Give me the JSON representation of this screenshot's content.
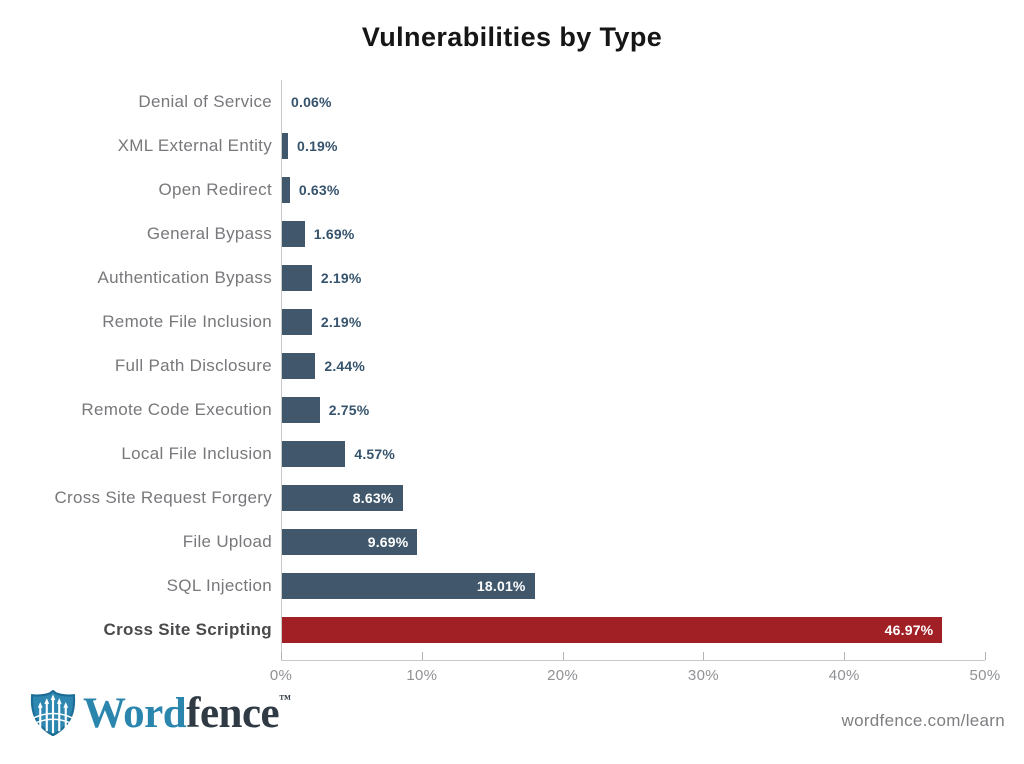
{
  "title": "Vulnerabilities by Type",
  "chart_data": {
    "type": "bar",
    "orientation": "horizontal",
    "title": "Vulnerabilities by Type",
    "xlabel": "",
    "ylabel": "",
    "xlim": [
      0,
      50
    ],
    "x_ticks": [
      "0%",
      "10%",
      "20%",
      "30%",
      "40%",
      "50%"
    ],
    "x_tick_values": [
      0,
      10,
      20,
      30,
      40,
      50
    ],
    "grid": false,
    "categories": [
      "Denial of Service",
      "XML External Entity",
      "Open Redirect",
      "General Bypass",
      "Authentication Bypass",
      "Remote File Inclusion",
      "Full Path Disclosure",
      "Remote Code Execution",
      "Local File Inclusion",
      "Cross Site Request Forgery",
      "File Upload",
      "SQL Injection",
      "Cross Site Scripting"
    ],
    "values": [
      0.06,
      0.19,
      0.63,
      1.69,
      2.19,
      2.19,
      2.44,
      2.75,
      4.57,
      8.63,
      9.69,
      18.01,
      46.97
    ],
    "value_labels": [
      "0.06%",
      "0.19%",
      "0.63%",
      "1.69%",
      "2.19%",
      "2.19%",
      "2.44%",
      "2.75%",
      "4.57%",
      "8.63%",
      "9.69%",
      "18.01%",
      "46.97%"
    ],
    "bar_color": "#41586c",
    "highlight_color": "#a02025",
    "highlight_category": "Cross Site Scripting",
    "value_label_color_outside": "#35536c",
    "value_label_color_inside": "#ffffff",
    "category_label_color": "#77787b",
    "highlight_category_label_color": "#4a4a4c"
  },
  "footer": {
    "brand_word": "Word",
    "brand_fence": "fence",
    "trademark": "™",
    "link": "wordfence.com/learn",
    "brand_blue": "#2b86ae",
    "brand_dark": "#2f3a44"
  }
}
